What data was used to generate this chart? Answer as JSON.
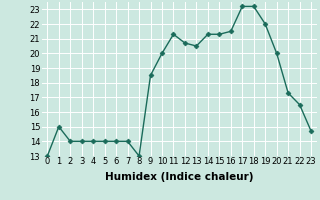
{
  "x": [
    0,
    1,
    2,
    3,
    4,
    5,
    6,
    7,
    8,
    9,
    10,
    11,
    12,
    13,
    14,
    15,
    16,
    17,
    18,
    19,
    20,
    21,
    22,
    23
  ],
  "y": [
    13,
    15,
    14,
    14,
    14,
    14,
    14,
    14,
    13,
    18.5,
    20,
    21.3,
    20.7,
    20.5,
    21.3,
    21.3,
    21.5,
    23.2,
    23.2,
    22,
    20,
    17.3,
    16.5,
    14.7
  ],
  "line_color": "#1a6b5a",
  "marker": "D",
  "marker_size": 2.5,
  "xlabel": "Humidex (Indice chaleur)",
  "xlim": [
    -0.5,
    23.5
  ],
  "ylim": [
    13,
    23.5
  ],
  "yticks": [
    13,
    14,
    15,
    16,
    17,
    18,
    19,
    20,
    21,
    22,
    23
  ],
  "xticks": [
    0,
    1,
    2,
    3,
    4,
    5,
    6,
    7,
    8,
    9,
    10,
    11,
    12,
    13,
    14,
    15,
    16,
    17,
    18,
    19,
    20,
    21,
    22,
    23
  ],
  "background_color": "#cce8e0",
  "grid_color": "#ffffff",
  "label_fontsize": 7.5,
  "tick_fontsize": 6.0,
  "linewidth": 1.0
}
